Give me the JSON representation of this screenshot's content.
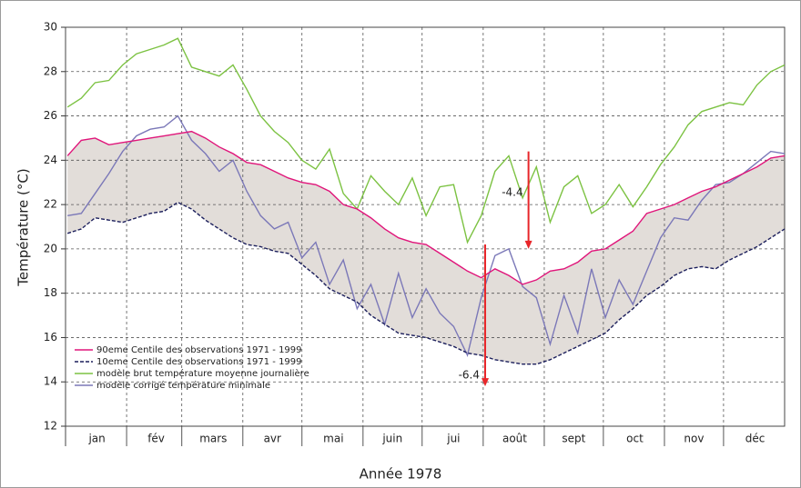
{
  "chart_data": {
    "type": "line",
    "xlabel": "Année 1978",
    "ylabel": "Température (°C)",
    "x": [
      1,
      8,
      15,
      22,
      29,
      36,
      43,
      50,
      57,
      64,
      71,
      78,
      85,
      92,
      99,
      106,
      113,
      120,
      127,
      134,
      141,
      148,
      155,
      162,
      169,
      176,
      183,
      190,
      197,
      204,
      211,
      218,
      225,
      232,
      239,
      246,
      253,
      260,
      267,
      274,
      281,
      288,
      295,
      302,
      309,
      316,
      323,
      330,
      337,
      344,
      351,
      358,
      365
    ],
    "xlim": [
      0,
      365
    ],
    "ylim": [
      12,
      30
    ],
    "yticks": [
      12,
      14,
      16,
      18,
      20,
      22,
      24,
      26,
      28,
      30
    ],
    "xticks": [
      {
        "value": 16,
        "label": "jan"
      },
      {
        "value": 46,
        "label": "fév"
      },
      {
        "value": 75,
        "label": "mars"
      },
      {
        "value": 105,
        "label": "avr"
      },
      {
        "value": 136,
        "label": "mai"
      },
      {
        "value": 166,
        "label": "juin"
      },
      {
        "value": 197,
        "label": "jui"
      },
      {
        "value": 228,
        "label": "août"
      },
      {
        "value": 258,
        "label": "sept"
      },
      {
        "value": 289,
        "label": "oct"
      },
      {
        "value": 319,
        "label": "nov"
      },
      {
        "value": 350,
        "label": "déc"
      }
    ],
    "xgrid": [
      31,
      59,
      90,
      120,
      151,
      181,
      212,
      243,
      273,
      304,
      334
    ],
    "grid": true,
    "band_color": "#e2ddd9",
    "series": [
      {
        "name": "90eme Centile des observations 1971 - 1999",
        "color": "#e0157a",
        "dash": false,
        "values": [
          24.2,
          24.9,
          25.0,
          24.7,
          24.8,
          24.9,
          25.0,
          25.1,
          25.2,
          25.3,
          25.0,
          24.6,
          24.3,
          23.9,
          23.8,
          23.5,
          23.2,
          23.0,
          22.9,
          22.6,
          22.0,
          21.8,
          21.4,
          20.9,
          20.5,
          20.3,
          20.2,
          19.8,
          19.4,
          19.0,
          18.7,
          19.1,
          18.8,
          18.4,
          18.6,
          19.0,
          19.1,
          19.4,
          19.9,
          20.0,
          20.4,
          20.8,
          21.6,
          21.8,
          22.0,
          22.3,
          22.6,
          22.8,
          23.1,
          23.4,
          23.7,
          24.1,
          24.2
        ]
      },
      {
        "name": "10eme Centile des observations 1971 - 1999",
        "color": "#1c1f5c",
        "dash": true,
        "values": [
          20.7,
          20.9,
          21.4,
          21.3,
          21.2,
          21.4,
          21.6,
          21.7,
          22.1,
          21.8,
          21.3,
          20.9,
          20.5,
          20.2,
          20.1,
          19.9,
          19.8,
          19.3,
          18.8,
          18.2,
          17.9,
          17.6,
          17.0,
          16.6,
          16.2,
          16.1,
          16.0,
          15.8,
          15.6,
          15.3,
          15.2,
          15.0,
          14.9,
          14.8,
          14.8,
          15.0,
          15.3,
          15.6,
          15.9,
          16.2,
          16.8,
          17.3,
          17.9,
          18.3,
          18.8,
          19.1,
          19.2,
          19.1,
          19.5,
          19.8,
          20.1,
          20.5,
          20.9
        ]
      },
      {
        "name": "modèle brut température moyenne journalière",
        "color": "#7cc242",
        "dash": false,
        "values": [
          26.4,
          26.8,
          27.5,
          27.6,
          28.3,
          28.8,
          29.0,
          29.2,
          29.5,
          28.2,
          28.0,
          27.8,
          28.3,
          27.2,
          26.0,
          25.3,
          24.8,
          24.0,
          23.6,
          24.5,
          22.5,
          21.8,
          23.3,
          22.6,
          22.0,
          23.2,
          21.5,
          22.8,
          22.9,
          20.3,
          21.5,
          23.5,
          24.2,
          22.3,
          23.7,
          21.2,
          22.8,
          23.3,
          21.6,
          22.0,
          22.9,
          21.9,
          22.8,
          23.8,
          24.6,
          25.6,
          26.2,
          26.4,
          26.6,
          26.5,
          27.4,
          28.0,
          28.3
        ]
      },
      {
        "name": "modèle corrigé température minimale",
        "color": "#7b78b8",
        "dash": false,
        "values": [
          21.5,
          21.6,
          22.5,
          23.4,
          24.4,
          25.1,
          25.4,
          25.5,
          26.0,
          24.9,
          24.3,
          23.5,
          24.0,
          22.6,
          21.5,
          20.9,
          21.2,
          19.6,
          20.3,
          18.4,
          19.5,
          17.3,
          18.4,
          16.6,
          18.9,
          16.9,
          18.2,
          17.1,
          16.5,
          15.2,
          17.8,
          19.7,
          20.0,
          18.3,
          17.8,
          15.7,
          17.9,
          16.2,
          19.1,
          16.9,
          18.6,
          17.5,
          19.0,
          20.5,
          21.4,
          21.3,
          22.2,
          22.9,
          23.0,
          23.4,
          23.9,
          24.4,
          24.3
        ]
      }
    ],
    "annotations": [
      {
        "label": "-6.4",
        "x": 213,
        "from": 20.2,
        "to": 13.8,
        "color": "#e8262a"
      },
      {
        "label": "-4.4",
        "x": 235,
        "from": 24.4,
        "to": 20.0,
        "color": "#e8262a"
      }
    ]
  }
}
